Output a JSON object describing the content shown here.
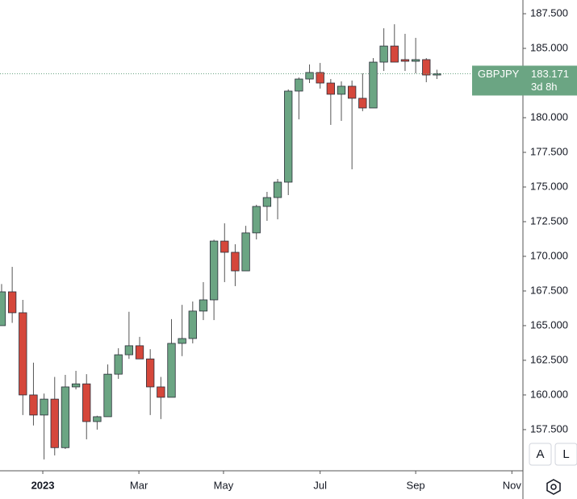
{
  "chart_data": {
    "type": "candlestick",
    "symbol": "GBPJPY",
    "last_price": 183.171,
    "last_price_label": "183.171",
    "countdown": "3d 8h",
    "up_color": "#6ba583",
    "down_color": "#d5473b",
    "x": [
      0,
      1,
      2,
      3,
      4,
      5,
      6,
      7,
      8,
      9,
      10,
      11,
      12,
      13,
      14,
      15,
      16,
      17,
      18,
      19,
      20,
      21,
      22,
      23,
      24,
      25,
      26,
      27,
      28,
      29,
      30,
      31,
      32,
      33,
      34,
      35,
      36,
      37,
      38,
      39,
      40,
      41
    ],
    "open": [
      165.0,
      167.44,
      165.93,
      160.0,
      158.55,
      159.7,
      156.2,
      160.58,
      160.8,
      158.08,
      158.43,
      161.5,
      162.9,
      163.55,
      162.6,
      160.58,
      159.83,
      163.72,
      164.07,
      166.05,
      166.86,
      171.1,
      170.29,
      168.95,
      171.69,
      173.6,
      174.24,
      175.35,
      181.92,
      182.79,
      183.26,
      182.5,
      181.69,
      182.27,
      181.4,
      180.7,
      184.01,
      185.17,
      184.19,
      184.07,
      184.19,
      183.08
    ],
    "high": [
      168.0,
      169.24,
      166.86,
      162.33,
      160.1,
      161.3,
      161.45,
      161.74,
      161.5,
      158.5,
      162.2,
      163.37,
      166.0,
      164.19,
      163.3,
      161.3,
      165.47,
      166.5,
      166.74,
      168.14,
      171.2,
      172.38,
      170.87,
      172.2,
      173.72,
      174.65,
      175.58,
      182.04,
      182.9,
      183.84,
      183.95,
      182.79,
      182.62,
      182.68,
      183.2,
      184.3,
      186.45,
      186.74,
      186.05,
      185.76,
      184.3,
      183.46
    ],
    "low": [
      165.0,
      165.2,
      158.55,
      157.8,
      155.35,
      155.64,
      156.1,
      160.4,
      156.8,
      157.5,
      158.43,
      161.16,
      162.6,
      162.6,
      158.55,
      158.26,
      159.83,
      162.8,
      163.72,
      165.4,
      165.4,
      168.14,
      167.85,
      168.95,
      171.22,
      172.56,
      172.67,
      174.42,
      179.88,
      182.5,
      182.1,
      179.48,
      179.77,
      176.28,
      180.47,
      180.7,
      183.37,
      184.01,
      183.37,
      183.2,
      182.56,
      182.79
    ],
    "close": [
      167.44,
      165.93,
      160.0,
      158.55,
      159.7,
      156.2,
      160.58,
      160.8,
      158.08,
      158.43,
      161.5,
      162.9,
      163.55,
      162.6,
      160.58,
      159.83,
      163.72,
      164.07,
      166.05,
      166.86,
      171.1,
      170.29,
      168.95,
      171.69,
      173.6,
      174.24,
      175.35,
      181.92,
      182.79,
      183.26,
      182.5,
      181.69,
      182.27,
      181.4,
      180.7,
      184.01,
      185.17,
      184.01,
      184.07,
      184.19,
      183.08,
      183.171
    ],
    "xlim": [
      -0.15,
      49.1
    ],
    "xticks": [
      {
        "value": 3.88,
        "label": "2023"
      },
      {
        "value": 12.93,
        "label": "Mar"
      },
      {
        "value": 20.9,
        "label": "May"
      },
      {
        "value": 30.0,
        "label": "Jul"
      },
      {
        "value": 39.0,
        "label": "Sep"
      },
      {
        "value": 48.06,
        "label": "Nov"
      }
    ],
    "ylim": [
      154.53,
      188.49
    ],
    "yticks": [
      {
        "value": 157.5,
        "label": "157.500"
      },
      {
        "value": 160,
        "label": "160.000"
      },
      {
        "value": 162.5,
        "label": "162.500"
      },
      {
        "value": 165,
        "label": "165.000"
      },
      {
        "value": 167.5,
        "label": "167.500"
      },
      {
        "value": 170,
        "label": "170.000"
      },
      {
        "value": 172.5,
        "label": "172.500"
      },
      {
        "value": 175,
        "label": "175.000"
      },
      {
        "value": 177.5,
        "label": "177.500"
      },
      {
        "value": 180,
        "label": "180.000"
      },
      {
        "value": 182.5,
        "label": "182.500"
      },
      {
        "value": 185,
        "label": "185.000"
      },
      {
        "value": 187.5,
        "label": "187.500"
      }
    ],
    "buttons": [
      "A",
      "L"
    ]
  }
}
